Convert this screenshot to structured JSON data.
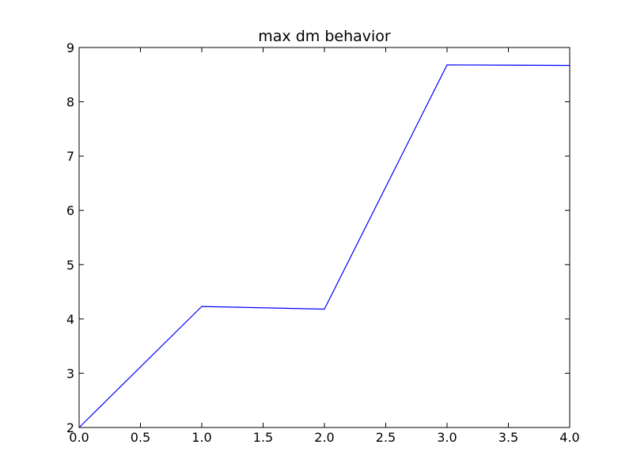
{
  "chart_data": {
    "type": "line",
    "title": "max dm behavior",
    "xlabel": "",
    "ylabel": "",
    "xlim": [
      0,
      4
    ],
    "ylim": [
      2,
      9
    ],
    "x_ticks": [
      0.0,
      0.5,
      1.0,
      1.5,
      2.0,
      2.5,
      3.0,
      3.5,
      4.0
    ],
    "x_tick_labels": [
      "0.0",
      "0.5",
      "1.0",
      "1.5",
      "2.0",
      "2.5",
      "3.0",
      "3.5",
      "4.0"
    ],
    "y_ticks": [
      2,
      3,
      4,
      5,
      6,
      7,
      8,
      9
    ],
    "y_tick_labels": [
      "2",
      "3",
      "4",
      "5",
      "6",
      "7",
      "8",
      "9"
    ],
    "grid": false,
    "series": [
      {
        "x": [
          0,
          1,
          2,
          3,
          4
        ],
        "values": [
          2.0,
          4.23,
          4.18,
          8.68,
          8.67
        ],
        "color": "#0000ff"
      }
    ]
  }
}
